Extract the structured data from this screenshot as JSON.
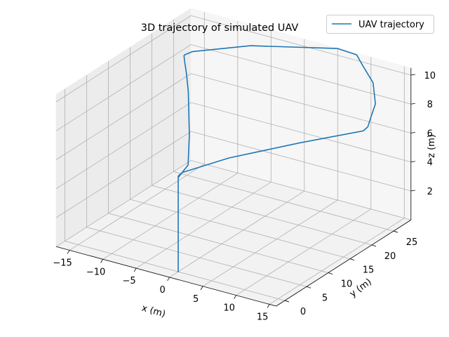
{
  "chart_data": {
    "type": "line3d",
    "title": "3D trajectory of simulated UAV",
    "xlabel": "x (m)",
    "ylabel": "y (m)",
    "zlabel": "z (m)",
    "xlim": [
      -17,
      16
    ],
    "ylim": [
      -2,
      29
    ],
    "zlim": [
      0,
      10.5
    ],
    "xticks": [
      -15,
      -10,
      -5,
      0,
      5,
      10,
      15
    ],
    "yticks": [
      0,
      5,
      10,
      15,
      20,
      25
    ],
    "zticks": [
      2,
      4,
      6,
      8,
      10
    ],
    "grid": true,
    "legend_position": "top-right",
    "series": [
      {
        "name": "UAV trajectory",
        "color": "#1f77b4",
        "x": [
          0,
          0,
          0,
          0,
          0,
          0.3,
          3.3,
          8.8,
          14.2,
          15.2,
          15.3,
          15.1,
          12.8,
          9.8,
          8.1,
          5.3,
          -4.8,
          -10.7,
          -11.2,
          -11.2,
          -11.0,
          -10.0,
          -8.6,
          -4.0,
          -0.8,
          0
        ],
        "y": [
          0,
          0,
          0,
          0,
          0,
          0.4,
          6.6,
          14.6,
          20.8,
          20.3,
          20.9,
          22.2,
          25.2,
          27.4,
          28.6,
          28.5,
          24.0,
          19.6,
          18.7,
          18.5,
          18.3,
          17.2,
          15.5,
          8.7,
          3.5,
          0
        ],
        "z": [
          0,
          1.5,
          3.5,
          5.5,
          6.6,
          6.8,
          7.0,
          7.2,
          7.5,
          8.0,
          8.6,
          9.2,
          9.8,
          10.2,
          10.5,
          10.6,
          10.4,
          10.1,
          10.0,
          9.98,
          9.7,
          9.2,
          8.4,
          7.3,
          6.6,
          6.5
        ]
      }
    ]
  }
}
